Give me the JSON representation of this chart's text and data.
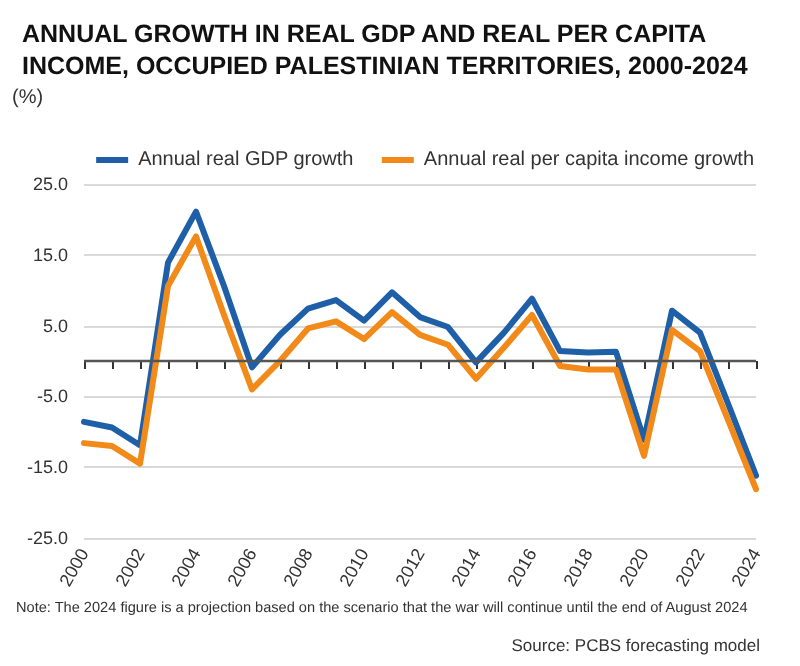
{
  "chart_data": {
    "type": "line",
    "title": "ANNUAL GROWTH IN REAL GDP AND REAL PER CAPITA INCOME, OCCUPIED PALESTINIAN TERRITORIES, 2000-2024",
    "ylabel": "(%)",
    "categories": [
      "2000",
      null,
      "2002",
      null,
      "2004",
      null,
      "2006",
      null,
      "2008",
      null,
      "2010",
      null,
      "2012",
      null,
      "2014",
      null,
      "2016",
      null,
      "2018",
      null,
      "2020",
      null,
      "2022",
      null,
      "2024"
    ],
    "series": [
      {
        "name": "Annual real GDP growth",
        "color": "#1f5fa8",
        "values": [
          -8.6,
          -9.4,
          -11.9,
          13.9,
          21.1,
          10.6,
          -0.9,
          3.7,
          7.4,
          8.6,
          5.7,
          9.7,
          6.2,
          4.8,
          -0.2,
          4.0,
          8.8,
          1.4,
          1.2,
          1.3,
          -11.1,
          7.1,
          4.0,
          -6.0,
          -16.2
        ]
      },
      {
        "name": "Annual real per capita income growth",
        "color": "#f28a1a",
        "values": [
          -11.6,
          -12.0,
          -14.5,
          10.6,
          17.6,
          6.5,
          -4.0,
          0.0,
          4.6,
          5.6,
          3.1,
          6.9,
          3.7,
          2.3,
          -2.5,
          1.9,
          6.5,
          -0.7,
          -1.2,
          -1.2,
          -13.4,
          4.4,
          1.4,
          -8.3,
          -18.1
        ]
      }
    ],
    "ylim": [
      -25,
      25
    ],
    "yticks": [
      {
        "value": -25,
        "label": "-25.0"
      },
      {
        "value": -15,
        "label": "-15.0"
      },
      {
        "value": -5,
        "label": "-5.0"
      },
      {
        "value": 5,
        "label": "5.0"
      },
      {
        "value": 15,
        "label": "15.0"
      },
      {
        "value": 25,
        "label": "25.0"
      }
    ],
    "ref_lines": [
      {
        "axis": "y",
        "value": 0,
        "color": "#555555"
      }
    ],
    "grid": "y",
    "legend": "top right",
    "marker": "none",
    "line_style": "solid",
    "annotations": [
      "Note: The 2024 figure is a projection based on the scenario that the war will continue until the end of August 2024",
      "Source: PCBS forecasting model"
    ]
  }
}
